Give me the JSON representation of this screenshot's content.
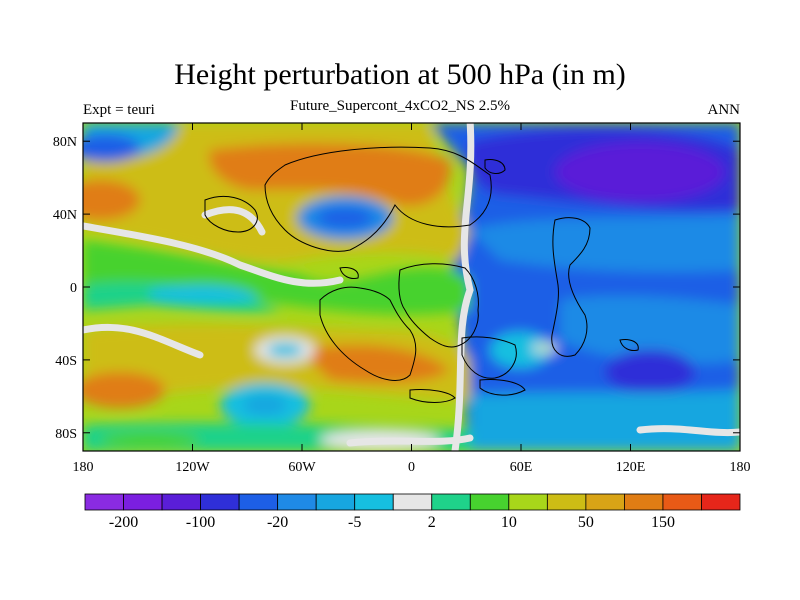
{
  "title": "Height perturbation at 500 hPa (in m)",
  "subtitle": "Future_Supercont_4xCO2_NS 2.5%",
  "left_label": "Expt = teuri",
  "right_label": "ANN",
  "map": {
    "lon_ticks": [
      "180",
      "120W",
      "60W",
      "0",
      "60E",
      "120E",
      "180"
    ],
    "lat_ticks": [
      "80N",
      "40N",
      "0",
      "40S",
      "80S"
    ],
    "lon_range": [
      -180,
      180
    ],
    "lat_range": [
      -90,
      90
    ]
  },
  "colorbar": {
    "colors": [
      "#8a2be2",
      "#7b1fe0",
      "#5a1ed8",
      "#2f2fd8",
      "#1d5fe6",
      "#1f8ae6",
      "#17a6e0",
      "#16bfe0",
      "#e6e6e6",
      "#1fd28a",
      "#47d22f",
      "#a8d61a",
      "#cdbd15",
      "#d9a416",
      "#e07d14",
      "#e85a16",
      "#e6261a"
    ],
    "labels": [
      "-200",
      "-100",
      "-20",
      "-5",
      "2",
      "10",
      "50",
      "150"
    ]
  }
}
